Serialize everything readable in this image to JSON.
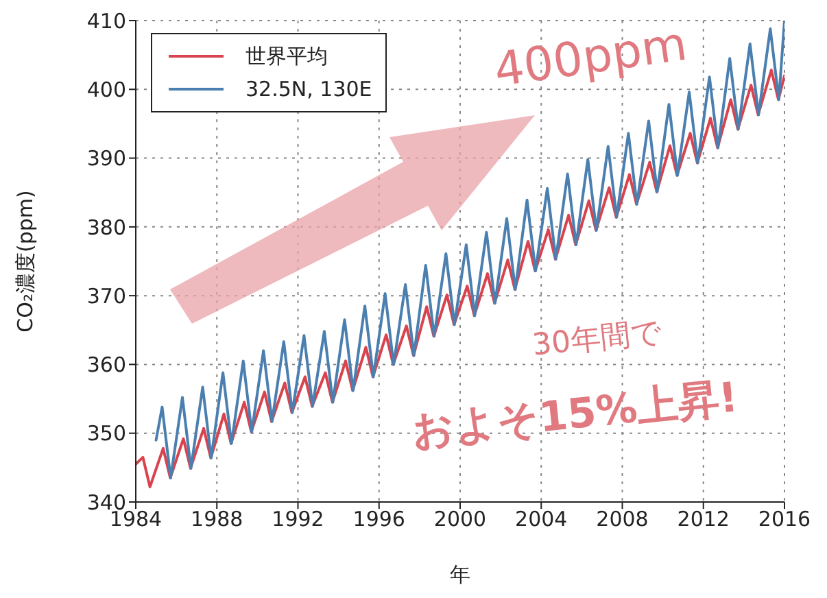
{
  "chart_data": {
    "type": "line",
    "xlabel": "年",
    "ylabel": "CO₂濃度(ppm)",
    "xlim": [
      1984,
      2016
    ],
    "xticks": [
      1984,
      1988,
      1992,
      1996,
      2000,
      2004,
      2008,
      2012,
      2016
    ],
    "ylim": [
      340,
      410
    ],
    "yticks": [
      340,
      350,
      360,
      370,
      380,
      390,
      400,
      410
    ],
    "grid": true,
    "legend": "top left",
    "marker": "none",
    "line_style": "solid",
    "annotations": [
      "400ppm",
      "30年間で",
      "およそ15%上昇!"
    ],
    "series": [
      {
        "name": "世界平均",
        "color": "#d9434e",
        "x": [
          1984.0,
          1984.35,
          1984.7,
          1985.35,
          1985.7,
          1986.35,
          1986.7,
          1987.35,
          1987.7,
          1988.35,
          1988.7,
          1989.35,
          1989.7,
          1990.35,
          1990.7,
          1991.35,
          1991.7,
          1992.35,
          1992.7,
          1993.35,
          1993.7,
          1994.35,
          1994.7,
          1995.35,
          1995.7,
          1996.35,
          1996.7,
          1997.35,
          1997.7,
          1998.35,
          1998.7,
          1999.35,
          1999.7,
          2000.35,
          2000.7,
          2001.35,
          2001.7,
          2002.35,
          2002.7,
          2003.35,
          2003.7,
          2004.35,
          2004.7,
          2005.35,
          2005.7,
          2006.35,
          2006.7,
          2007.35,
          2007.7,
          2008.35,
          2008.7,
          2009.35,
          2009.7,
          2010.35,
          2010.7,
          2011.35,
          2011.7,
          2012.35,
          2012.7,
          2013.35,
          2013.7,
          2014.35,
          2014.7,
          2015.35,
          2015.7,
          2016.0
        ],
        "values": [
          345.5,
          346.5,
          342.2,
          347.8,
          343.5,
          349.2,
          344.9,
          350.7,
          346.4,
          352.8,
          348.5,
          354.5,
          350.2,
          356,
          351.7,
          357.3,
          353,
          358.2,
          353.9,
          358.8,
          354.5,
          360.5,
          356.2,
          362.5,
          358.2,
          364.3,
          360,
          365.6,
          361.3,
          368.4,
          364.1,
          370.1,
          365.8,
          371.4,
          367.1,
          373.2,
          368.9,
          375.2,
          370.9,
          377.9,
          373.6,
          379.6,
          375.3,
          381.7,
          377.4,
          383.8,
          379.5,
          385.7,
          381.4,
          387.6,
          383.3,
          389.4,
          385.1,
          391.8,
          387.5,
          393.6,
          389.3,
          395.8,
          391.5,
          398.5,
          394.2,
          400.6,
          396.3,
          402.8,
          398.5,
          402
        ]
      },
      {
        "name": "32.5N, 130E",
        "color": "#4a7fb0",
        "x": [
          1985.0,
          1985.3,
          1985.72,
          1986.3,
          1986.72,
          1987.3,
          1987.72,
          1988.3,
          1988.72,
          1989.3,
          1989.72,
          1990.3,
          1990.72,
          1991.3,
          1991.72,
          1992.3,
          1992.72,
          1993.3,
          1993.72,
          1994.3,
          1994.72,
          1995.3,
          1995.72,
          1996.3,
          1996.72,
          1997.3,
          1997.72,
          1998.3,
          1998.72,
          1999.3,
          1999.72,
          2000.3,
          2000.72,
          2001.3,
          2001.72,
          2002.3,
          2002.72,
          2003.3,
          2003.72,
          2004.3,
          2004.72,
          2005.3,
          2005.72,
          2006.3,
          2006.72,
          2007.3,
          2007.72,
          2008.3,
          2008.72,
          2009.3,
          2009.72,
          2010.3,
          2010.72,
          2011.3,
          2011.72,
          2012.3,
          2012.72,
          2013.3,
          2013.72,
          2014.3,
          2014.72,
          2015.3,
          2015.72,
          2016.0
        ],
        "values": [
          349,
          353.8,
          343.5,
          355.2,
          344.9,
          356.7,
          346.4,
          358.8,
          348.5,
          360.5,
          350.2,
          362,
          351.7,
          363.3,
          353,
          364.2,
          353.9,
          364.8,
          354.5,
          366.5,
          356.2,
          368.5,
          358.2,
          370.3,
          360,
          371.6,
          361.3,
          374.4,
          364.1,
          376.1,
          365.8,
          377.4,
          367.1,
          379.2,
          368.9,
          381.2,
          370.9,
          383.9,
          373.6,
          385.6,
          375.3,
          387.7,
          377.4,
          389.8,
          379.5,
          391.7,
          381.4,
          393.6,
          383.3,
          395.4,
          385.1,
          397.8,
          387.5,
          399.6,
          389.3,
          401.8,
          391.5,
          404.5,
          394.2,
          406.6,
          396.3,
          408.8,
          398.5,
          410
        ]
      }
    ]
  }
}
